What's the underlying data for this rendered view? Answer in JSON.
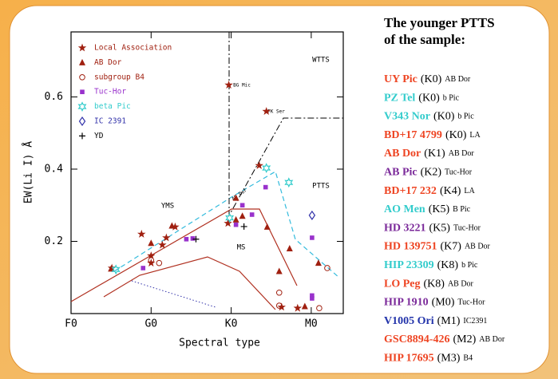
{
  "chart_data": {
    "type": "scatter",
    "xlabel": "Spectral type",
    "ylabel": "EW(Li I) Å",
    "xlim": [
      0,
      34
    ],
    "ylim": [
      0,
      0.78
    ],
    "xticks": [
      {
        "value": 0,
        "label": "F0"
      },
      {
        "value": 10,
        "label": "G0"
      },
      {
        "value": 20,
        "label": "K0"
      },
      {
        "value": 30,
        "label": "M0"
      }
    ],
    "yticks": [
      0.2,
      0.4,
      0.6
    ],
    "annotations": [
      "YMS",
      "MS",
      "PTTS",
      "WTTS",
      "BG Mic",
      "FK Ser",
      "AB Dor"
    ],
    "series": [
      {
        "name": "Local Association",
        "color": "#a02010",
        "marker": "star",
        "x": [
          19.7,
          24.4,
          23.5,
          19.6,
          8.8,
          10,
          10,
          11.4,
          11.9,
          13,
          5.1,
          26.3,
          28.3
        ],
        "y": [
          0.633,
          0.56,
          0.41,
          0.25,
          0.22,
          0.16,
          0.14,
          0.19,
          0.21,
          0.24,
          0.126,
          0.018,
          0.015
        ]
      },
      {
        "name": "AB Dor",
        "color": "#a02010",
        "marker": "triangle",
        "x": [
          5,
          10,
          12.6,
          20.6,
          21.4,
          20.6,
          24.5,
          27.3,
          26,
          29.2,
          30.9
        ],
        "y": [
          0.124,
          0.195,
          0.243,
          0.26,
          0.27,
          0.32,
          0.24,
          0.18,
          0.117,
          0.02,
          0.14
        ]
      },
      {
        "name": "subgroup B4",
        "color": "#a02010",
        "marker": "circle",
        "x": [
          10,
          11,
          26,
          26,
          32,
          31
        ],
        "y": [
          0.148,
          0.14,
          0.058,
          0.022,
          0.126,
          0.015
        ]
      },
      {
        "name": "Tuc-Hor",
        "color": "#9932cc",
        "marker": "square",
        "x": [
          14.4,
          15.2,
          9,
          21.4,
          22.6,
          20.6,
          24.3,
          30.1,
          30.1,
          30.1
        ],
        "y": [
          0.206,
          0.208,
          0.126,
          0.3,
          0.274,
          0.246,
          0.35,
          0.21,
          0.05,
          0.042
        ]
      },
      {
        "name": "beta Pic",
        "color": "#33cccc",
        "marker": "hexstar",
        "x": [
          5.6,
          24.4,
          27.2,
          19.8
        ],
        "y": [
          0.122,
          0.403,
          0.363,
          0.265
        ]
      },
      {
        "name": "IC 2391",
        "color": "#3333aa",
        "marker": "diamond",
        "x": [
          30.1
        ],
        "y": [
          0.272
        ]
      },
      {
        "name": "YD",
        "color": "#000000",
        "marker": "plus",
        "x": [
          15.6,
          21.6
        ],
        "y": [
          0.206,
          0.241
        ]
      }
    ]
  },
  "sidebar": {
    "title": [
      "The younger PTTS",
      "of the sample:"
    ],
    "items": [
      {
        "name": "UY Pic",
        "spt": "(K0)",
        "group": "AB Dor",
        "color": "#ee4422"
      },
      {
        "name": "PZ Tel",
        "spt": "(K0)",
        "group": "b Pic",
        "color": "#33cccc"
      },
      {
        "name": "V343 Nor",
        "spt": "(K0)",
        "group": "b Pic",
        "color": "#33cccc"
      },
      {
        "name": "BD+17 4799",
        "spt": "(K0)",
        "group": "LA",
        "color": "#ee4422"
      },
      {
        "name": "AB Dor",
        "spt": "(K1)",
        "group": "AB Dor",
        "color": "#ee4422"
      },
      {
        "name": "AB Pic",
        "spt": "(K2)",
        "group": "Tuc-Hor",
        "color": "#7b2a9a"
      },
      {
        "name": "BD+17 232",
        "spt": "(K4)",
        "group": "LA",
        "color": "#ee4422"
      },
      {
        "name": "AO Men",
        "spt": "(K5)",
        "group": "B Pic",
        "color": "#33cccc"
      },
      {
        "name": "HD 3221",
        "spt": "(K5)",
        "group": "Tuc-Hor",
        "color": "#7b2a9a"
      },
      {
        "name": "HD 139751",
        "spt": "(K7)",
        "group": "AB Dor",
        "color": "#ee4422"
      },
      {
        "name": "HIP 23309",
        "spt": "(K8)",
        "group": "b Pic",
        "color": "#33cccc"
      },
      {
        "name": "LO Peg",
        "spt": "(K8)",
        "group": "AB Dor",
        "color": "#ee4422"
      },
      {
        "name": "HIP 1910",
        "spt": "(M0)",
        "group": "Tuc-Hor",
        "color": "#7b2a9a"
      },
      {
        "name": "V1005 Ori",
        "spt": "(M1)",
        "group": "IC2391",
        "color": "#2233aa"
      },
      {
        "name": "GSC8894-426",
        "spt": "(M2)",
        "group": "AB Dor",
        "color": "#ee4422"
      },
      {
        "name": "HIP 17695",
        "spt": "(M3)",
        "group": "B4",
        "color": "#ee4422"
      }
    ]
  }
}
